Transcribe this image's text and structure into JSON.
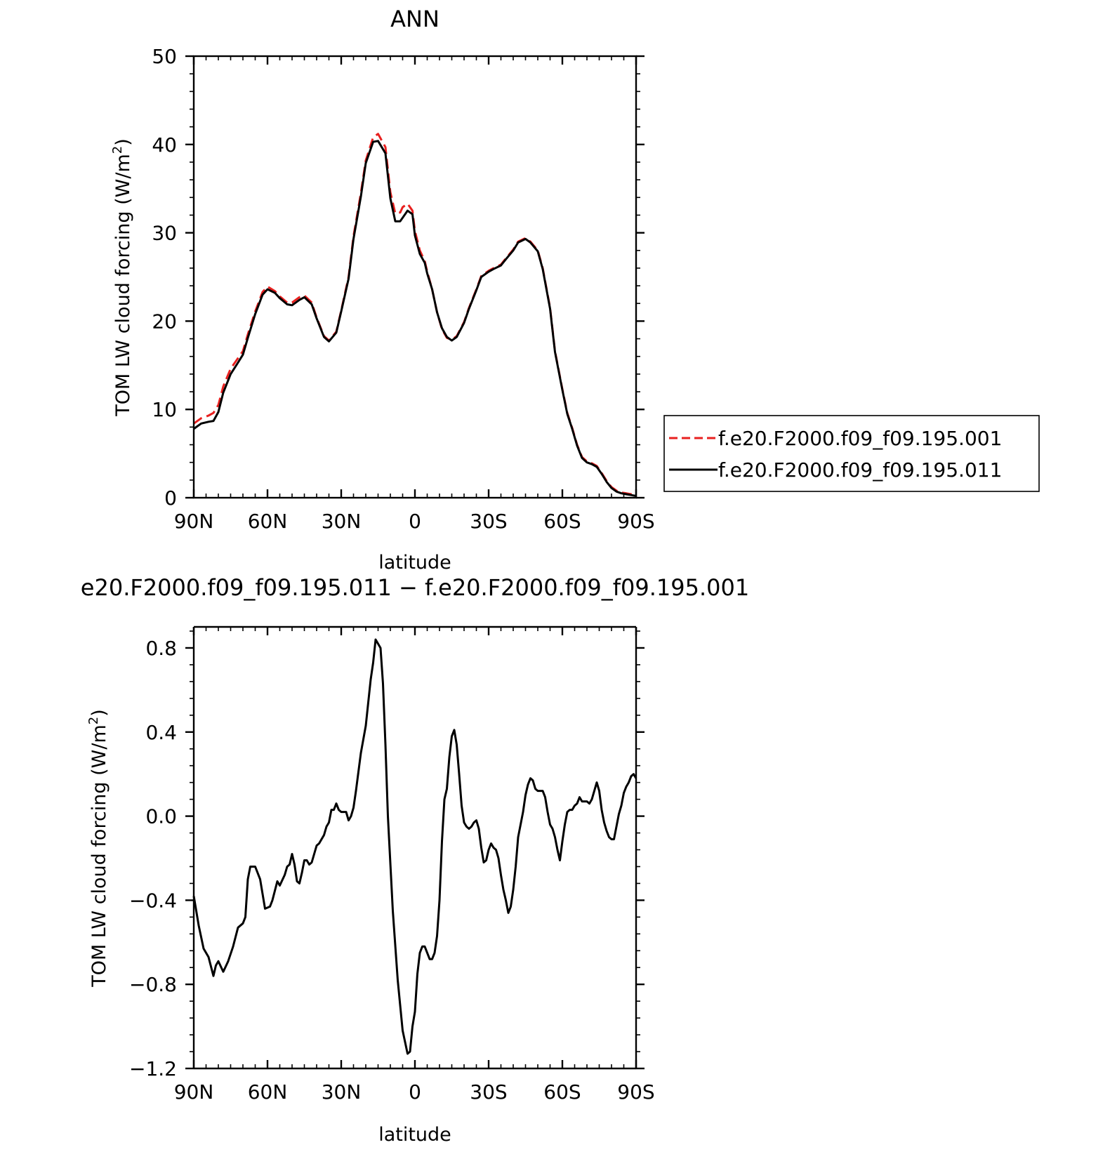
{
  "chart_data": [
    {
      "type": "line",
      "title": "ANN",
      "xlabel": "latitude",
      "ylabel": "TOM LW cloud forcing (W/m²)",
      "ylabel_main": "TOM LW cloud forcing (W/m",
      "ylabel_sup": "2",
      "ylabel_close": ")",
      "xlim": [
        90,
        -90
      ],
      "ylim": [
        0,
        50
      ],
      "x_ticks": [
        90,
        60,
        30,
        0,
        -30,
        -60,
        -90
      ],
      "x_tick_labels": [
        "90N",
        "60N",
        "30N",
        "0",
        "30S",
        "60S",
        "90S"
      ],
      "y_ticks": [
        0,
        10,
        20,
        30,
        40,
        50
      ],
      "y_tick_labels": [
        "0",
        "10",
        "20",
        "30",
        "40",
        "50"
      ],
      "legend_placement": "right",
      "series": [
        {
          "name": "f.e20.F2000.f09_f09.195.001",
          "color": "#e8201f",
          "dash": "dashed",
          "x": [
            90,
            87,
            84,
            82,
            80,
            78,
            75,
            72,
            70,
            68,
            65,
            62,
            60,
            57,
            55,
            52,
            50,
            47,
            45,
            42,
            40,
            37,
            35,
            32,
            30,
            27,
            25,
            22,
            20,
            17,
            15,
            12,
            10,
            8,
            6,
            5,
            3,
            1,
            0,
            -2,
            -4,
            -5,
            -7,
            -9,
            -11,
            -13,
            -15,
            -17,
            -20,
            -22,
            -25,
            -27,
            -30,
            -32,
            -35,
            -37,
            -40,
            -42,
            -45,
            -47,
            -50,
            -52,
            -55,
            -57,
            -60,
            -62,
            -64,
            -66,
            -68,
            -70,
            -72,
            -74,
            -76,
            -78,
            -80,
            -82,
            -84,
            -86,
            -88,
            -90
          ],
          "y": [
            8.4,
            9.0,
            9.3,
            9.6,
            10.5,
            12.6,
            14.6,
            15.8,
            16.6,
            18.5,
            21.1,
            23.3,
            23.9,
            23.4,
            22.8,
            22.1,
            22.1,
            22.7,
            22.9,
            22.1,
            20.4,
            18.3,
            17.8,
            18.8,
            21.2,
            25.0,
            29.6,
            34.5,
            38.2,
            40.8,
            41.2,
            39.7,
            34.6,
            32.2,
            32.3,
            32.9,
            33.3,
            32.5,
            30.2,
            28.0,
            26.8,
            25.6,
            23.6,
            21.0,
            19.1,
            18.1,
            17.9,
            18.3,
            19.9,
            21.5,
            23.6,
            25.1,
            25.7,
            26.0,
            26.4,
            27.1,
            28.1,
            29.0,
            29.4,
            29.0,
            28.0,
            26.0,
            21.5,
            16.6,
            12.3,
            9.6,
            7.9,
            6.0,
            4.6,
            4.1,
            3.9,
            3.6,
            2.8,
            1.9,
            1.2,
            0.8,
            0.6,
            0.5,
            0.4,
            0.3
          ]
        },
        {
          "name": "f.e20.F2000.f09_f09.195.011",
          "color": "#000000",
          "dash": "solid",
          "x": [
            90,
            87,
            84,
            82,
            80,
            78,
            75,
            72,
            70,
            68,
            65,
            62,
            60,
            57,
            55,
            52,
            50,
            47,
            45,
            42,
            40,
            37,
            35,
            32,
            30,
            27,
            25,
            22,
            20,
            17,
            15,
            12,
            10,
            8,
            6,
            5,
            3,
            1,
            0,
            -2,
            -4,
            -5,
            -7,
            -9,
            -11,
            -13,
            -15,
            -17,
            -20,
            -22,
            -25,
            -27,
            -30,
            -32,
            -35,
            -37,
            -40,
            -42,
            -45,
            -47,
            -50,
            -52,
            -55,
            -57,
            -60,
            -62,
            -64,
            -66,
            -68,
            -70,
            -72,
            -74,
            -76,
            -78,
            -80,
            -82,
            -84,
            -86,
            -88,
            -90
          ],
          "y": [
            7.8,
            8.4,
            8.6,
            8.7,
            9.7,
            11.9,
            14.0,
            15.3,
            16.2,
            18.1,
            20.8,
            23.0,
            23.6,
            23.2,
            22.6,
            21.9,
            21.8,
            22.4,
            22.7,
            21.9,
            20.3,
            18.2,
            17.7,
            18.7,
            21.1,
            24.8,
            29.3,
            34.1,
            37.9,
            40.3,
            40.4,
            39.0,
            33.9,
            31.3,
            31.3,
            31.7,
            32.5,
            32.1,
            29.7,
            27.6,
            26.6,
            25.4,
            23.6,
            21.0,
            19.2,
            18.2,
            17.8,
            18.2,
            19.8,
            21.4,
            23.5,
            25.0,
            25.6,
            25.9,
            26.3,
            27.0,
            28.0,
            28.9,
            29.3,
            28.9,
            27.9,
            25.9,
            21.4,
            16.5,
            12.2,
            9.5,
            7.8,
            5.9,
            4.5,
            4.0,
            3.8,
            3.5,
            2.7,
            1.8,
            1.1,
            0.7,
            0.5,
            0.4,
            0.3,
            0.2
          ]
        }
      ]
    },
    {
      "type": "line",
      "title": "e20.F2000.f09_f09.195.011 − f.e20.F2000.f09_f09.195.001",
      "xlabel": "latitude",
      "ylabel": "TOM LW cloud forcing (W/m²)",
      "ylabel_main": "TOM LW cloud forcing (W/m",
      "ylabel_sup": "2",
      "ylabel_close": ")",
      "xlim": [
        90,
        -90
      ],
      "ylim": [
        -1.2,
        0.9
      ],
      "x_ticks": [
        90,
        60,
        30,
        0,
        -30,
        -60,
        -90
      ],
      "x_tick_labels": [
        "90N",
        "60N",
        "30N",
        "0",
        "30S",
        "60S",
        "90S"
      ],
      "y_ticks": [
        -1.2,
        -0.8,
        -0.4,
        0.0,
        0.4,
        0.8
      ],
      "y_tick_labels": [
        "−1.2",
        "−0.8",
        "−0.4",
        "0.0",
        "0.4",
        "0.8"
      ],
      "series": [
        {
          "name": "",
          "color": "#000000",
          "dash": "solid",
          "x": [
            90,
            88,
            86,
            84,
            82,
            81,
            80,
            78,
            76,
            74,
            72,
            70,
            69,
            68,
            67,
            65,
            63,
            61,
            59,
            58,
            56,
            55,
            53,
            52,
            51,
            50,
            49,
            48,
            47,
            46,
            45,
            44,
            43,
            42,
            40,
            39,
            38,
            37,
            36,
            35,
            34,
            33,
            32,
            31,
            30,
            28,
            27,
            26,
            25,
            24,
            22,
            20,
            18,
            17,
            16,
            14,
            13,
            12,
            11,
            9,
            7,
            5,
            3,
            2,
            1,
            0,
            -1,
            -2,
            -3,
            -4,
            -5,
            -6,
            -7,
            -8,
            -9,
            -10,
            -11,
            -12,
            -13,
            -14,
            -15,
            -16,
            -17,
            -18,
            -19,
            -20,
            -21,
            -22,
            -23,
            -24,
            -25,
            -26,
            -27,
            -28,
            -29,
            -30,
            -31,
            -32,
            -33,
            -34,
            -35,
            -36,
            -37,
            -38,
            -39,
            -40,
            -41,
            -42,
            -43,
            -44,
            -45,
            -46,
            -47,
            -48,
            -49,
            -50,
            -51,
            -52,
            -53,
            -54,
            -55,
            -56,
            -57,
            -58,
            -59,
            -60,
            -61,
            -62,
            -63,
            -64,
            -65,
            -66,
            -67,
            -68,
            -69,
            -70,
            -71,
            -72,
            -73,
            -74,
            -75,
            -76,
            -77,
            -78,
            -79,
            -80,
            -81,
            -82,
            -83,
            -84,
            -85,
            -86,
            -87,
            -88,
            -89,
            -90
          ],
          "y": [
            -0.38,
            -0.52,
            -0.63,
            -0.67,
            -0.76,
            -0.71,
            -0.69,
            -0.74,
            -0.69,
            -0.62,
            -0.53,
            -0.51,
            -0.48,
            -0.3,
            -0.24,
            -0.24,
            -0.3,
            -0.44,
            -0.43,
            -0.4,
            -0.31,
            -0.33,
            -0.28,
            -0.24,
            -0.23,
            -0.18,
            -0.23,
            -0.31,
            -0.32,
            -0.27,
            -0.21,
            -0.21,
            -0.23,
            -0.22,
            -0.14,
            -0.13,
            -0.11,
            -0.09,
            -0.05,
            -0.03,
            0.03,
            0.03,
            0.06,
            0.03,
            0.02,
            0.02,
            -0.02,
            0.0,
            0.04,
            0.12,
            0.3,
            0.43,
            0.65,
            0.73,
            0.84,
            0.8,
            0.63,
            0.34,
            0.0,
            -0.45,
            -0.78,
            -1.02,
            -1.13,
            -1.12,
            -1.0,
            -0.93,
            -0.75,
            -0.65,
            -0.62,
            -0.62,
            -0.65,
            -0.68,
            -0.68,
            -0.65,
            -0.57,
            -0.4,
            -0.12,
            0.08,
            0.13,
            0.28,
            0.38,
            0.41,
            0.34,
            0.2,
            0.05,
            -0.03,
            -0.05,
            -0.06,
            -0.05,
            -0.03,
            -0.02,
            -0.06,
            -0.15,
            -0.22,
            -0.21,
            -0.16,
            -0.13,
            -0.15,
            -0.16,
            -0.2,
            -0.28,
            -0.35,
            -0.4,
            -0.46,
            -0.43,
            -0.35,
            -0.24,
            -0.1,
            -0.04,
            0.02,
            0.1,
            0.15,
            0.18,
            0.17,
            0.13,
            0.12,
            0.12,
            0.12,
            0.09,
            0.02,
            -0.04,
            -0.06,
            -0.1,
            -0.16,
            -0.21,
            -0.12,
            -0.04,
            0.02,
            0.03,
            0.03,
            0.05,
            0.06,
            0.09,
            0.07,
            0.07,
            0.07,
            0.06,
            0.08,
            0.12,
            0.16,
            0.12,
            0.03,
            -0.03,
            -0.07,
            -0.1,
            -0.11,
            -0.11,
            -0.05,
            0.01,
            0.05,
            0.11,
            0.14,
            0.16,
            0.19,
            0.2,
            0.18
          ]
        }
      ]
    }
  ]
}
